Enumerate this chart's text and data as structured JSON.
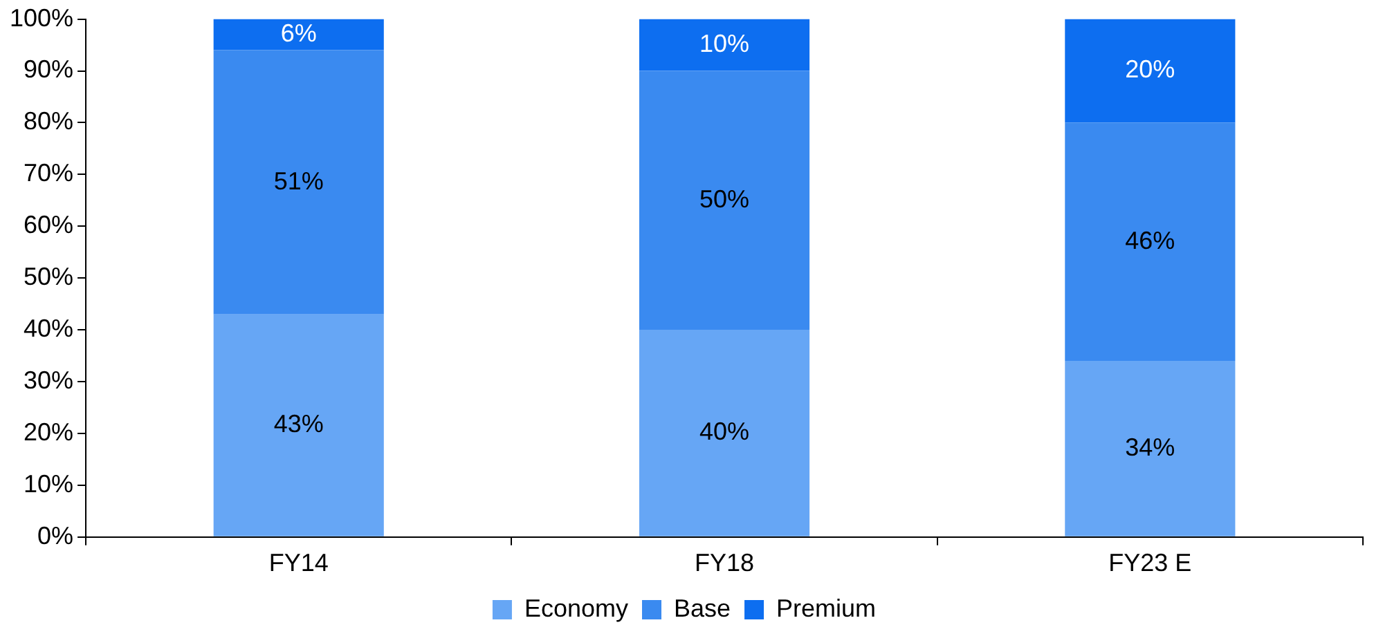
{
  "chart_data": {
    "type": "bar",
    "stacked": true,
    "categories": [
      "FY14",
      "FY18",
      "FY23 E"
    ],
    "series": [
      {
        "name": "Economy",
        "color": "#66a6f5",
        "values": [
          43,
          40,
          34
        ],
        "value_labels": [
          "43%",
          "40%",
          "34%"
        ]
      },
      {
        "name": "Base",
        "color": "#3a8af0",
        "values": [
          51,
          50,
          46
        ],
        "value_labels": [
          "51%",
          "50%",
          "46%"
        ]
      },
      {
        "name": "Premium",
        "color": "#0d6ef0",
        "values": [
          6,
          10,
          20
        ],
        "value_labels": [
          "6%",
          "10%",
          "20%"
        ]
      }
    ],
    "ylim": [
      0,
      100
    ],
    "yticks": [
      {
        "value": 0,
        "label": "0%"
      },
      {
        "value": 10,
        "label": "10%"
      },
      {
        "value": 20,
        "label": "20%"
      },
      {
        "value": 30,
        "label": "30%"
      },
      {
        "value": 40,
        "label": "40%"
      },
      {
        "value": 50,
        "label": "50%"
      },
      {
        "value": 60,
        "label": "60%"
      },
      {
        "value": 70,
        "label": "70%"
      },
      {
        "value": 80,
        "label": "80%"
      },
      {
        "value": 90,
        "label": "90%"
      },
      {
        "value": 100,
        "label": "100%"
      }
    ],
    "grid": false,
    "legend": "bottom"
  }
}
